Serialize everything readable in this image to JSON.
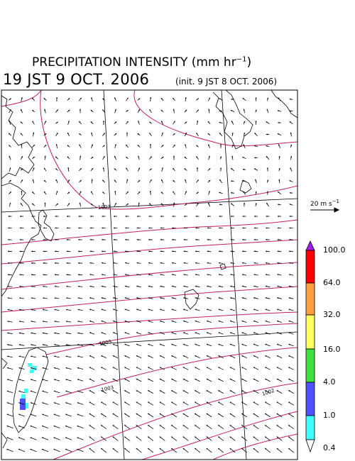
{
  "header": {
    "title_text": "PRECIPITATION INTENSITY (mm hr",
    "title_exp": "−1",
    "title_close": ")",
    "valid_time": "19 JST 9 OCT. 2006",
    "init_time": "(init. 9 JST 8 OCT. 2006)"
  },
  "reference_vector": {
    "label": "20 m s",
    "exp": "−1"
  },
  "colorbar": {
    "labels": [
      "100.0",
      "64.0",
      "32.0",
      "16.0",
      "4.0",
      "1.0",
      "0.4"
    ],
    "colors": [
      "#a020f0",
      "#ff0000",
      "#ffa040",
      "#ffff60",
      "#40e040",
      "#5050ff",
      "#40ffff",
      "#ffffff"
    ]
  },
  "isobars": {
    "labels": [
      "1007",
      "1005",
      "1003",
      "1002"
    ],
    "color": "#c02060"
  },
  "colors": {
    "coast": "#000000",
    "grid": "#000000",
    "vector": "#000000"
  }
}
